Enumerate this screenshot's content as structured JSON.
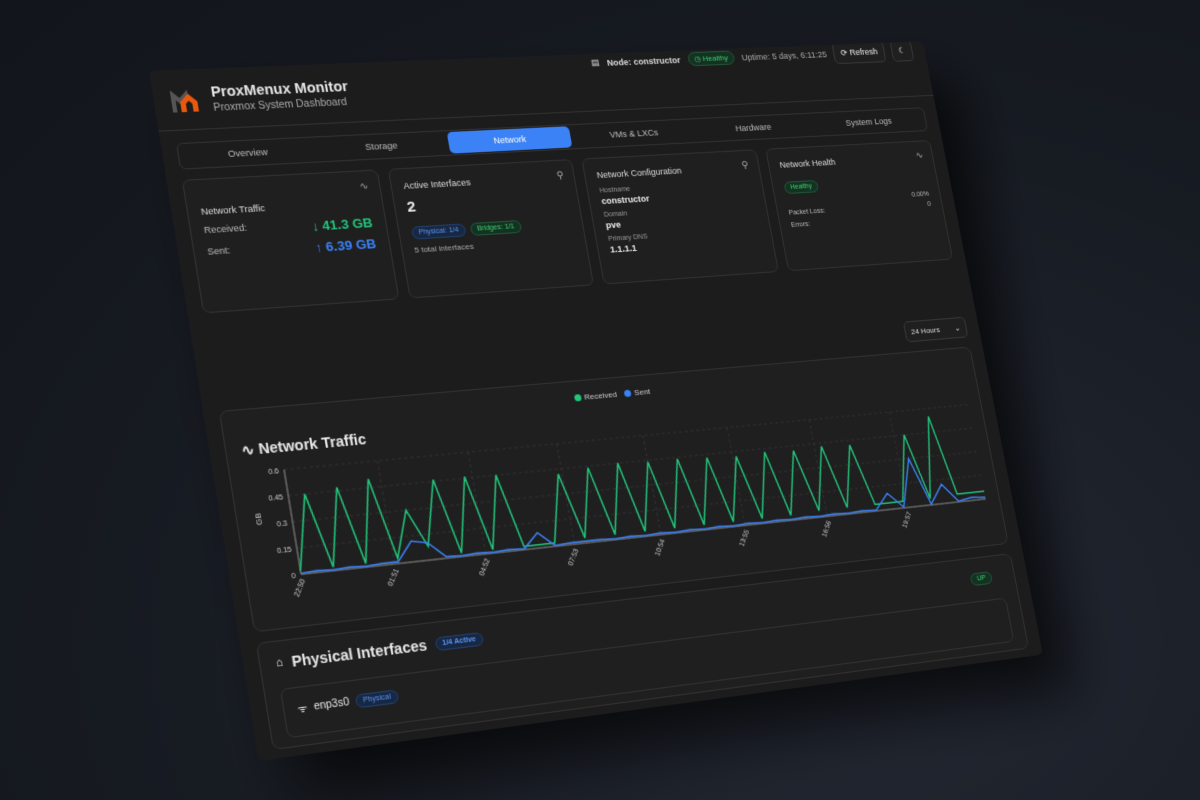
{
  "header": {
    "title": "ProxMenux Monitor",
    "subtitle": "Proxmox System Dashboard",
    "node": "Node: constructor",
    "status": "Healthy",
    "uptime": "Uptime: 5 days, 6:11:25",
    "refresh": "Refresh"
  },
  "tabs": [
    {
      "label": "Overview"
    },
    {
      "label": "Storage"
    },
    {
      "label": "Network",
      "active": true
    },
    {
      "label": "VMs & LXCs"
    },
    {
      "label": "Hardware"
    },
    {
      "label": "System Logs"
    }
  ],
  "traffic": {
    "title": "Network Traffic",
    "received_label": "Received:",
    "received": "↓ 41.3 GB",
    "sent_label": "Sent:",
    "sent": "↑ 6.39 GB"
  },
  "interfaces": {
    "title": "Active Interfaces",
    "count": "2",
    "physical": "Physical: 1/4",
    "bridges": "Bridges: 1/1",
    "total": "5 total interfaces"
  },
  "config": {
    "title": "Network Configuration",
    "hostname_label": "Hostname",
    "hostname": "constructor",
    "domain_label": "Domain",
    "domain": "pve",
    "dns_label": "Primary DNS",
    "dns": "1.1.1.1"
  },
  "health": {
    "title": "Network Health",
    "status": "Healthy",
    "loss_value": "0.00%",
    "loss_label": "Packet Loss:",
    "errors_value": "0",
    "errors_label": "Errors:"
  },
  "range": "24 Hours",
  "colors": {
    "received": "#22c57a",
    "sent": "#3b82f6",
    "accent": "#3b82f6"
  },
  "chart_data": {
    "type": "line",
    "title": "Network Traffic",
    "ylabel": "GB",
    "ylim": [
      0,
      0.6
    ],
    "yticks": [
      "0",
      "0.15",
      "0.3",
      "0.45",
      "0.6"
    ],
    "xticks": [
      "22:50",
      "01:51",
      "04:52",
      "07:53",
      "10:54",
      "13:55",
      "16:56",
      "19:57"
    ],
    "legend": "top-center",
    "grid": true,
    "series": [
      {
        "name": "Received",
        "values": [
          0.02,
          0.45,
          0.02,
          0.47,
          0.02,
          0.5,
          0.03,
          0.3,
          0.08,
          0.46,
          0.02,
          0.46,
          0.02,
          0.45,
          0.02,
          0.02,
          0.02,
          0.42,
          0.03,
          0.44,
          0.03,
          0.45,
          0.03,
          0.44,
          0.03,
          0.44,
          0.03,
          0.43,
          0.03,
          0.42,
          0.03,
          0.43,
          0.03,
          0.42,
          0.04,
          0.43,
          0.04,
          0.42,
          0.04,
          0.04,
          0.04,
          0.45,
          0.04,
          0.55,
          0.05,
          0.05,
          0.05
        ]
      },
      {
        "name": "Sent",
        "values": [
          0.005,
          0.01,
          0.005,
          0.01,
          0.005,
          0.01,
          0.01,
          0.12,
          0.1,
          0.01,
          0.005,
          0.01,
          0.005,
          0.01,
          0.005,
          0.09,
          0.005,
          0.01,
          0.01,
          0.01,
          0.005,
          0.01,
          0.005,
          0.01,
          0.005,
          0.01,
          0.005,
          0.01,
          0.005,
          0.01,
          0.005,
          0.01,
          0.005,
          0.01,
          0.005,
          0.01,
          0.005,
          0.01,
          0.005,
          0.1,
          0.005,
          0.3,
          0.005,
          0.12,
          0.005,
          0.02,
          0.01
        ]
      }
    ]
  },
  "physical": {
    "title": "Physical Interfaces",
    "active": "1/4 Active",
    "iface_name": "enp3s0",
    "iface_type": "Physical",
    "iface_status": "UP"
  }
}
